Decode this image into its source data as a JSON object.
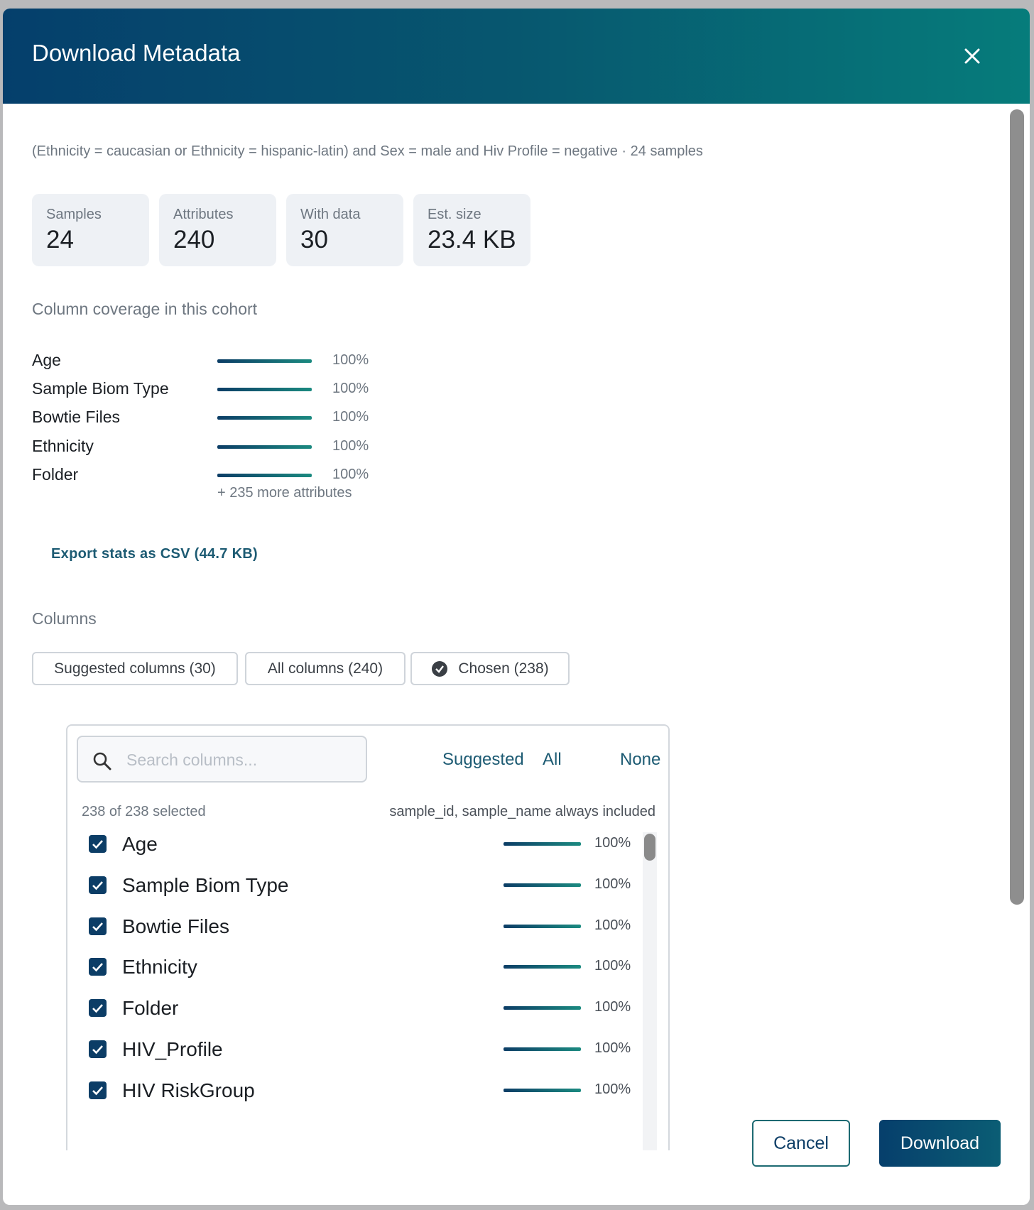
{
  "dialog": {
    "title": "Download Metadata",
    "query": "(Ethnicity = caucasian or Ethnicity = hispanic-latin) and Sex = male and Hiv Profile = negative · 24 samples",
    "stats": [
      {
        "label": "Samples",
        "value": "24"
      },
      {
        "label": "Attributes",
        "value": "240"
      },
      {
        "label": "With data",
        "value": "30"
      },
      {
        "label": "Est. size",
        "value": "23.4 KB"
      }
    ],
    "coverage_heading": "Column coverage in this cohort",
    "coverage": [
      {
        "name": "Age",
        "value": 100,
        "label": "100%"
      },
      {
        "name": "Sample Biom Type",
        "value": 100,
        "label": "100%"
      },
      {
        "name": "Bowtie Files",
        "value": 100,
        "label": "100%"
      },
      {
        "name": "Ethnicity",
        "value": 100,
        "label": "100%"
      },
      {
        "name": "Folder",
        "value": 100,
        "label": "100%"
      }
    ],
    "more_attributes": "+ 235 more attributes",
    "export_link": "Export stats as CSV (44.7 KB)",
    "columns_heading": "Columns",
    "tabs": [
      "Suggested columns (30)",
      "All columns (240)",
      "Chosen (238)"
    ],
    "search_placeholder": "Search columns...",
    "quick_select": [
      "Suggested",
      "All",
      "None"
    ],
    "selected_count": "238 of 238 selected",
    "always_included": "sample_id, sample_name always included",
    "columns": [
      {
        "name": "Age",
        "value": 100,
        "label": "100%"
      },
      {
        "name": "Sample Biom Type",
        "value": 100,
        "label": "100%"
      },
      {
        "name": "Bowtie Files",
        "value": 100,
        "label": "100%"
      },
      {
        "name": "Ethnicity",
        "value": 100,
        "label": "100%"
      },
      {
        "name": "Folder",
        "value": 100,
        "label": "100%"
      },
      {
        "name": "HIV_Profile",
        "value": 100,
        "label": "100%"
      },
      {
        "name": "HIV RiskGroup",
        "value": 100,
        "label": "100%"
      }
    ],
    "cancel": "Cancel",
    "download": "Download"
  }
}
